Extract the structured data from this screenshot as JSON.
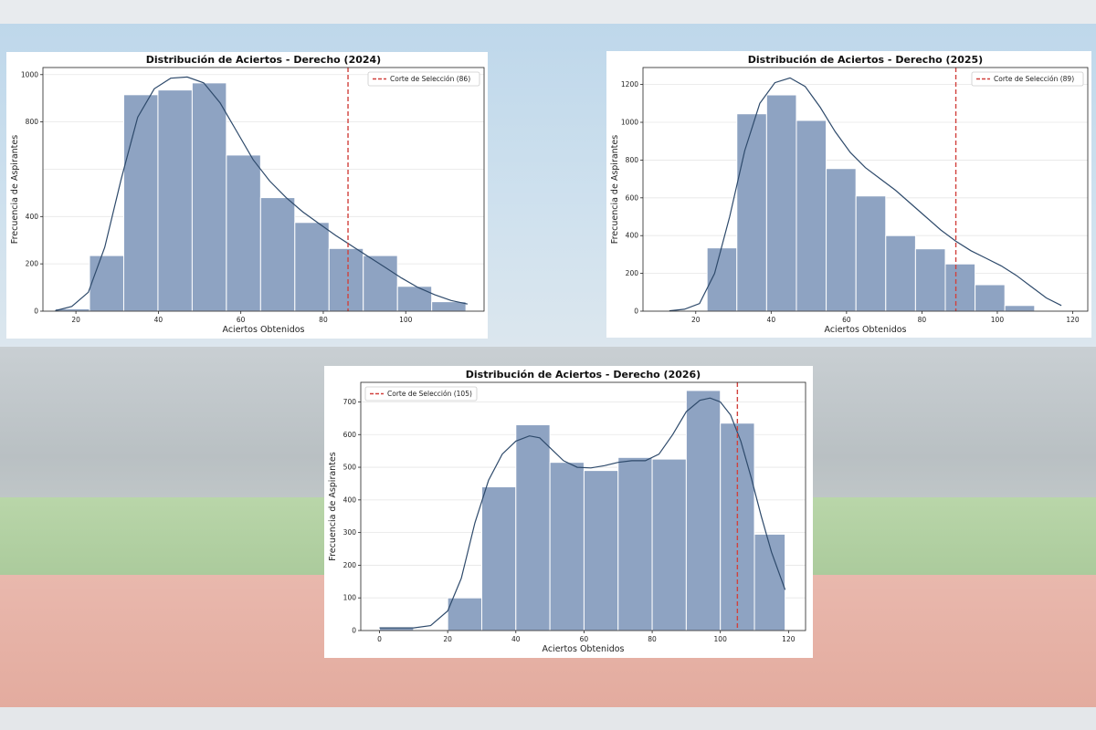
{
  "colors": {
    "bar_fill": "#8ea3c2",
    "bar_stroke": "#ffffff",
    "kde_line": "#2e4a6b",
    "cutoff_line": "#d1413c",
    "grid": "#e6e6e6"
  },
  "chart_data": [
    {
      "type": "bar",
      "title": "Distribución de Aciertos - Derecho (2024)",
      "xlabel": "Aciertos Obtenidos",
      "ylabel": "Frecuencia de Aspirantes",
      "xlim": [
        12,
        119
      ],
      "ylim": [
        0,
        1030
      ],
      "xticks": [
        20,
        40,
        60,
        80,
        100
      ],
      "yticks": [
        0,
        200,
        400,
        800,
        1000
      ],
      "yticks_all": [
        0,
        200,
        400,
        600,
        800,
        1000
      ],
      "bin_edges": [
        15,
        23.3,
        31.6,
        39.9,
        48.2,
        56.5,
        64.8,
        73.1,
        81.4,
        89.7,
        98,
        106.3,
        114.6
      ],
      "values": [
        10,
        235,
        915,
        935,
        965,
        660,
        480,
        375,
        265,
        235,
        105,
        40
      ],
      "kde": [
        [
          15,
          2
        ],
        [
          19,
          20
        ],
        [
          23,
          80
        ],
        [
          27,
          270
        ],
        [
          31,
          560
        ],
        [
          35,
          820
        ],
        [
          39,
          940
        ],
        [
          43,
          985
        ],
        [
          47,
          990
        ],
        [
          51,
          965
        ],
        [
          55,
          880
        ],
        [
          59,
          760
        ],
        [
          63,
          640
        ],
        [
          67,
          550
        ],
        [
          71,
          480
        ],
        [
          75,
          420
        ],
        [
          79,
          370
        ],
        [
          83,
          320
        ],
        [
          87,
          275
        ],
        [
          91,
          230
        ],
        [
          95,
          185
        ],
        [
          99,
          140
        ],
        [
          103,
          100
        ],
        [
          107,
          70
        ],
        [
          111,
          45
        ],
        [
          115,
          30
        ]
      ],
      "cutoff": 86,
      "legend": "Corte de Selección (86)",
      "legend_position": "top-right",
      "grid": true
    },
    {
      "type": "bar",
      "title": "Distribución de Aciertos - Derecho (2025)",
      "xlabel": "Aciertos Obtenidos",
      "ylabel": "Frecuencia de Aspirantes",
      "xlim": [
        6,
        124
      ],
      "ylim": [
        0,
        1290
      ],
      "xticks": [
        20,
        40,
        60,
        80,
        100,
        120
      ],
      "yticks": [
        0,
        200,
        400,
        600,
        800,
        1000,
        1200
      ],
      "bin_edges": [
        23,
        30.9,
        38.8,
        46.7,
        54.6,
        62.5,
        70.4,
        78.3,
        86.2,
        94.1,
        102,
        109.9,
        117.8
      ],
      "values": [
        335,
        1045,
        1145,
        1010,
        755,
        610,
        400,
        330,
        250,
        140,
        30,
        0
      ],
      "kde": [
        [
          13,
          2
        ],
        [
          17,
          10
        ],
        [
          21,
          40
        ],
        [
          25,
          200
        ],
        [
          29,
          500
        ],
        [
          33,
          850
        ],
        [
          37,
          1100
        ],
        [
          41,
          1210
        ],
        [
          45,
          1235
        ],
        [
          49,
          1190
        ],
        [
          53,
          1080
        ],
        [
          57,
          950
        ],
        [
          61,
          840
        ],
        [
          65,
          760
        ],
        [
          69,
          700
        ],
        [
          73,
          640
        ],
        [
          77,
          570
        ],
        [
          81,
          500
        ],
        [
          85,
          430
        ],
        [
          89,
          370
        ],
        [
          93,
          320
        ],
        [
          97,
          280
        ],
        [
          101,
          240
        ],
        [
          105,
          190
        ],
        [
          109,
          130
        ],
        [
          113,
          70
        ],
        [
          117,
          30
        ]
      ],
      "cutoff": 89,
      "legend": "Corte de Selección (89)",
      "legend_position": "top-right",
      "grid": true
    },
    {
      "type": "bar",
      "title": "Distribución de Aciertos - Derecho (2026)",
      "xlabel": "Aciertos Obtenidos",
      "ylabel": "Frecuencia de Aspirantes",
      "xlim": [
        -5.5,
        125
      ],
      "ylim": [
        0,
        760
      ],
      "xticks": [
        0,
        20,
        40,
        60,
        80,
        100,
        120
      ],
      "yticks": [
        0,
        100,
        200,
        300,
        400,
        500,
        600,
        700
      ],
      "bin_edges": [
        0,
        10,
        20,
        30,
        40,
        50,
        60,
        70,
        80,
        90,
        100,
        110,
        119
      ],
      "values": [
        10,
        0,
        100,
        440,
        630,
        515,
        490,
        530,
        525,
        735,
        635,
        295
      ],
      "kde": [
        [
          0,
          8
        ],
        [
          5,
          8
        ],
        [
          10,
          8
        ],
        [
          15,
          15
        ],
        [
          20,
          60
        ],
        [
          24,
          160
        ],
        [
          28,
          330
        ],
        [
          32,
          460
        ],
        [
          36,
          540
        ],
        [
          40,
          580
        ],
        [
          44,
          596
        ],
        [
          47,
          590
        ],
        [
          50,
          560
        ],
        [
          54,
          520
        ],
        [
          58,
          500
        ],
        [
          62,
          498
        ],
        [
          66,
          505
        ],
        [
          70,
          515
        ],
        [
          74,
          520
        ],
        [
          78,
          520
        ],
        [
          82,
          540
        ],
        [
          86,
          600
        ],
        [
          90,
          670
        ],
        [
          94,
          705
        ],
        [
          97,
          712
        ],
        [
          100,
          700
        ],
        [
          103,
          660
        ],
        [
          106,
          580
        ],
        [
          109,
          470
        ],
        [
          112,
          350
        ],
        [
          115,
          240
        ],
        [
          119,
          125
        ]
      ],
      "cutoff": 105,
      "legend": "Corte de Selección (105)",
      "legend_position": "top-left",
      "grid": true
    }
  ]
}
